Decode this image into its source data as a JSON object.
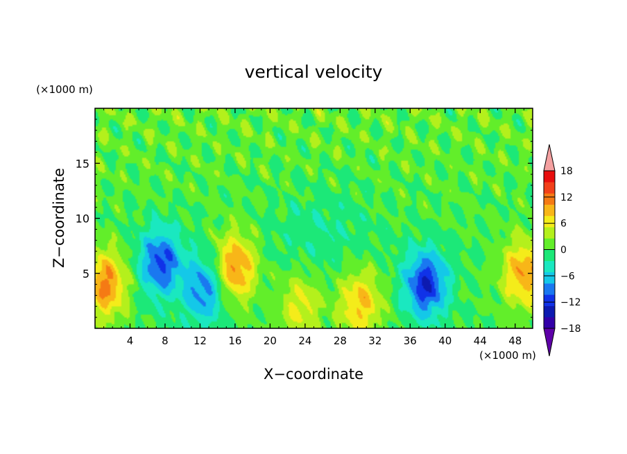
{
  "chart_data": {
    "type": "heatmap",
    "title": "vertical velocity",
    "xlabel": "X−coordinate",
    "ylabel": "Z−coordinate",
    "x_unit": "(×1000 m)",
    "y_unit": "(×1000 m)",
    "xlim": [
      0,
      50
    ],
    "ylim": [
      0,
      20
    ],
    "x_ticks": [
      4,
      8,
      12,
      16,
      20,
      24,
      28,
      32,
      36,
      40,
      44,
      48
    ],
    "y_ticks": [
      5,
      10,
      15
    ],
    "x_tick_labels": [
      "4",
      "8",
      "12",
      "16",
      "20",
      "24",
      "28",
      "32",
      "36",
      "40",
      "44",
      "48"
    ],
    "y_tick_labels": [
      "5",
      "10",
      "15"
    ],
    "colorbar": {
      "levels": [
        -21,
        -18,
        -15,
        -12,
        -9,
        -6,
        -3,
        0,
        3,
        6,
        9,
        12,
        15,
        18,
        21
      ],
      "tick_values": [
        18,
        12,
        6,
        0,
        -6,
        -12,
        -18
      ],
      "tick_labels": [
        "18",
        "12",
        "6",
        "0",
        "−6",
        "−12",
        "−18"
      ],
      "colors": [
        "#5e00a8",
        "#3300a8",
        "#0d1ab0",
        "#1032e8",
        "#1a78f0",
        "#14c8e8",
        "#1ae8c0",
        "#1ce878",
        "#62ee2a",
        "#b4f01c",
        "#f4ec1a",
        "#f8b618",
        "#f57a14",
        "#f2401a",
        "#e80e0e",
        "#f4a0a0"
      ],
      "extend": "both"
    },
    "features": [
      {
        "x": 1.2,
        "z": 4.0,
        "value": 13,
        "note": "updraft"
      },
      {
        "x": 7.5,
        "z": 6.0,
        "value": -13,
        "note": "downdraft"
      },
      {
        "x": 12.5,
        "z": 3.5,
        "value": -11,
        "note": "downdraft"
      },
      {
        "x": 16.0,
        "z": 5.5,
        "value": 13,
        "note": "updraft"
      },
      {
        "x": 23.5,
        "z": 2.0,
        "value": 7,
        "note": "updraft"
      },
      {
        "x": 30.3,
        "z": 2.3,
        "value": 10,
        "note": "updraft"
      },
      {
        "x": 37.8,
        "z": 4.0,
        "value": -15,
        "note": "downdraft"
      },
      {
        "x": 49.0,
        "z": 5.0,
        "value": 12,
        "note": "updraft"
      }
    ]
  }
}
